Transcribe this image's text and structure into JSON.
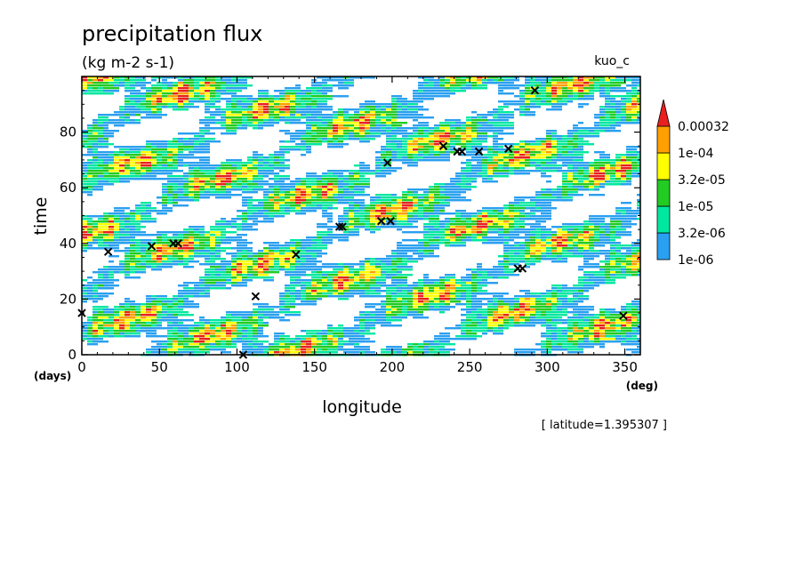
{
  "chart_data": {
    "type": "heatmap",
    "title": "precipitation flux",
    "units": "(kg m-2 s-1)",
    "run_label": "kuo_c",
    "xlabel": "longitude",
    "ylabel": "time",
    "x_unit": "(deg)",
    "y_unit": "(days)",
    "xlim": [
      0,
      360
    ],
    "ylim": [
      0,
      100
    ],
    "x_ticks": [
      0,
      50,
      100,
      150,
      200,
      250,
      300,
      350
    ],
    "y_ticks": [
      0,
      20,
      40,
      60,
      80
    ],
    "annotation": "[ latitude=1.395307 ]",
    "colorbar": {
      "levels": [
        "1e-06",
        "3.2e-06",
        "1e-05",
        "3.2e-05",
        "1e-04",
        "0.00032"
      ],
      "colors": [
        "#2aa0f0",
        "#00e8a0",
        "#22cc22",
        "#ffff00",
        "#ffa000",
        "#e82020"
      ]
    },
    "markers": [
      {
        "x": 0,
        "y": 15
      },
      {
        "x": 17,
        "y": 37
      },
      {
        "x": 45,
        "y": 39
      },
      {
        "x": 59,
        "y": 40
      },
      {
        "x": 62,
        "y": 40
      },
      {
        "x": 104,
        "y": 0
      },
      {
        "x": 112,
        "y": 21
      },
      {
        "x": 138,
        "y": 36
      },
      {
        "x": 166,
        "y": 46
      },
      {
        "x": 168,
        "y": 46
      },
      {
        "x": 193,
        "y": 48
      },
      {
        "x": 197,
        "y": 69
      },
      {
        "x": 199,
        "y": 48
      },
      {
        "x": 233,
        "y": 75
      },
      {
        "x": 242,
        "y": 73
      },
      {
        "x": 245,
        "y": 73
      },
      {
        "x": 256,
        "y": 73
      },
      {
        "x": 275,
        "y": 74
      },
      {
        "x": 281,
        "y": 31
      },
      {
        "x": 284,
        "y": 31
      },
      {
        "x": 292,
        "y": 95
      },
      {
        "x": 349,
        "y": 14
      }
    ]
  }
}
